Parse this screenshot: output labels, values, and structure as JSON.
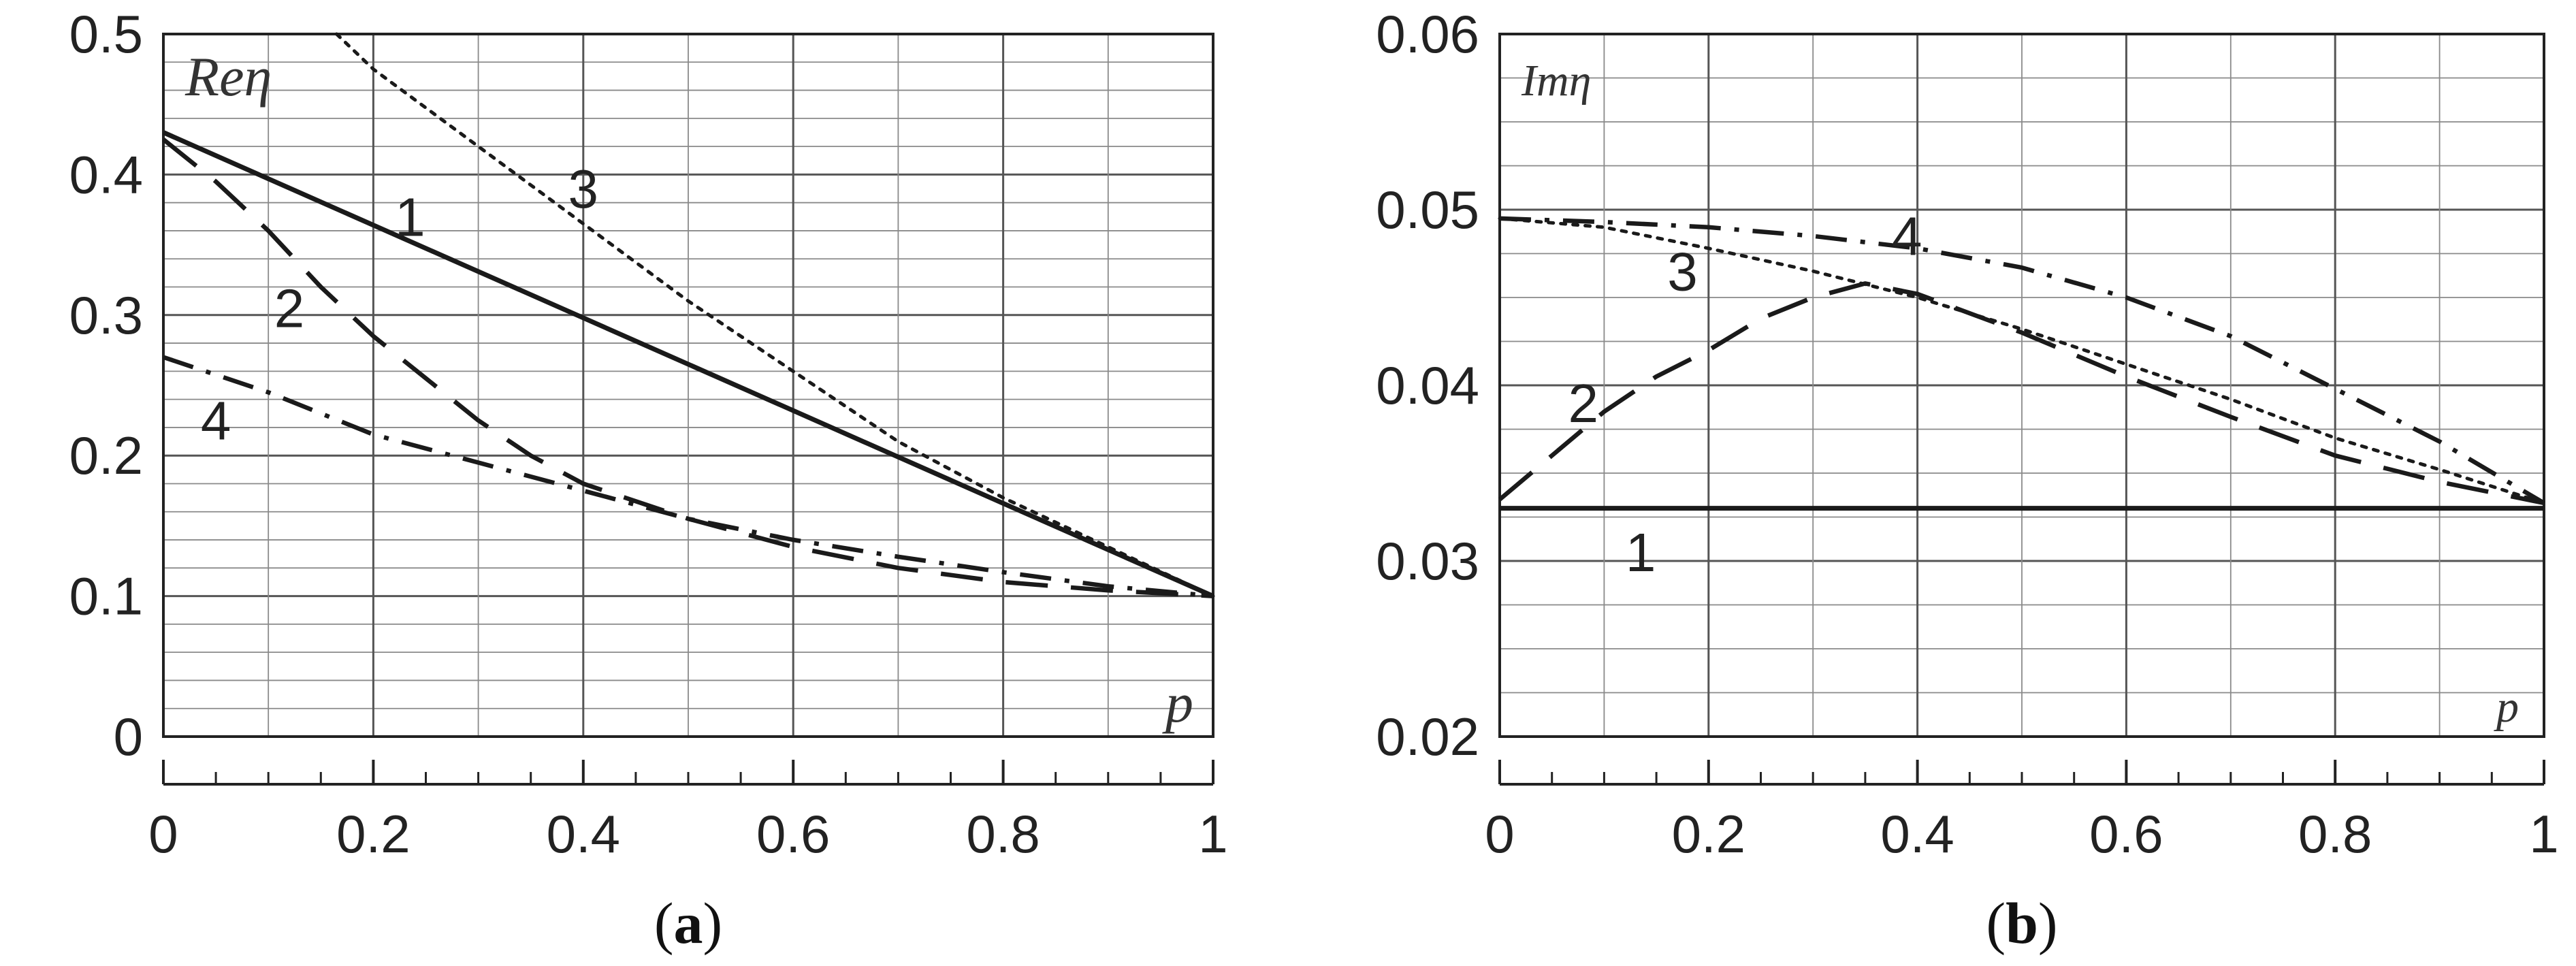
{
  "chart_data": [
    {
      "type": "line",
      "panel_label": "a",
      "ylabel": "Reη",
      "xlabel": "p",
      "xlim": [
        0,
        1
      ],
      "ylim": [
        0,
        0.5
      ],
      "grid": true,
      "x_ticks": [
        0,
        0.2,
        0.4,
        0.6,
        0.8,
        1
      ],
      "x_tick_labels": [
        "0",
        "0.2",
        "0.4",
        "0.6",
        "0.8",
        "1"
      ],
      "y_ticks": [
        0,
        0.1,
        0.2,
        0.3,
        0.4,
        0.5
      ],
      "y_tick_labels": [
        "0",
        "0.1",
        "0.2",
        "0.3",
        "0.4",
        "0.5"
      ],
      "series": [
        {
          "label": "1",
          "style": "solid",
          "label_at": [
            0.235,
            0.37
          ],
          "x": [
            0,
            1
          ],
          "y": [
            0.43,
            0.1
          ]
        },
        {
          "label": "2",
          "style": "dashed",
          "label_at": [
            0.12,
            0.305
          ],
          "x": [
            0,
            0.05,
            0.1,
            0.15,
            0.2,
            0.25,
            0.3,
            0.35,
            0.4,
            0.5,
            0.6,
            0.7,
            0.8,
            0.9,
            1
          ],
          "y": [
            0.425,
            0.395,
            0.36,
            0.32,
            0.285,
            0.255,
            0.225,
            0.2,
            0.18,
            0.155,
            0.135,
            0.12,
            0.11,
            0.104,
            0.1
          ]
        },
        {
          "label": "3",
          "style": "dotted",
          "label_at": [
            0.4,
            0.39
          ],
          "x": [
            0.165,
            0.2,
            0.3,
            0.4,
            0.5,
            0.6,
            0.7,
            0.8,
            0.9,
            1
          ],
          "y": [
            0.5,
            0.475,
            0.42,
            0.365,
            0.31,
            0.26,
            0.21,
            0.17,
            0.135,
            0.1
          ]
        },
        {
          "label": "4",
          "style": "dashdot",
          "label_at": [
            0.05,
            0.225
          ],
          "x": [
            0,
            0.1,
            0.2,
            0.3,
            0.4,
            0.5,
            0.6,
            0.7,
            0.8,
            0.9,
            1
          ],
          "y": [
            0.27,
            0.245,
            0.215,
            0.195,
            0.175,
            0.155,
            0.14,
            0.128,
            0.117,
            0.107,
            0.1
          ]
        }
      ]
    },
    {
      "type": "line",
      "panel_label": "b",
      "ylabel": "Imη",
      "xlabel": "p",
      "xlim": [
        0,
        1
      ],
      "ylim": [
        0.02,
        0.06
      ],
      "grid": true,
      "x_ticks": [
        0,
        0.2,
        0.4,
        0.6,
        0.8,
        1
      ],
      "x_tick_labels": [
        "0",
        "0.2",
        "0.4",
        "0.6",
        "0.8",
        "1"
      ],
      "y_ticks": [
        0.02,
        0.03,
        0.04,
        0.05,
        0.06
      ],
      "y_tick_labels": [
        "0.02",
        "0.03",
        "0.04",
        "0.05",
        "0.06"
      ],
      "series": [
        {
          "label": "1",
          "style": "solid",
          "label_at": [
            0.135,
            0.0305
          ],
          "x": [
            0,
            1
          ],
          "y": [
            0.033,
            0.033
          ]
        },
        {
          "label": "2",
          "style": "dashed",
          "label_at": [
            0.08,
            0.039
          ],
          "x": [
            0,
            0.05,
            0.1,
            0.15,
            0.2,
            0.25,
            0.3,
            0.35,
            0.4,
            0.5,
            0.6,
            0.7,
            0.8,
            0.9,
            1
          ],
          "y": [
            0.0335,
            0.036,
            0.0385,
            0.0405,
            0.042,
            0.0438,
            0.045,
            0.0458,
            0.0452,
            0.043,
            0.0405,
            0.0382,
            0.036,
            0.0345,
            0.0333
          ]
        },
        {
          "label": "3",
          "style": "dotted",
          "label_at": [
            0.175,
            0.0465
          ],
          "x": [
            0,
            0.1,
            0.2,
            0.3,
            0.4,
            0.5,
            0.6,
            0.7,
            0.8,
            0.9,
            1
          ],
          "y": [
            0.0495,
            0.049,
            0.0478,
            0.0465,
            0.045,
            0.0432,
            0.0412,
            0.0392,
            0.037,
            0.0352,
            0.0333
          ]
        },
        {
          "label": "4",
          "style": "dashdot",
          "label_at": [
            0.39,
            0.0485
          ],
          "x": [
            0,
            0.1,
            0.2,
            0.3,
            0.4,
            0.5,
            0.6,
            0.7,
            0.8,
            0.9,
            1
          ],
          "y": [
            0.0495,
            0.0493,
            0.049,
            0.0485,
            0.0478,
            0.0467,
            0.045,
            0.0428,
            0.0398,
            0.0368,
            0.0333
          ]
        }
      ]
    }
  ]
}
